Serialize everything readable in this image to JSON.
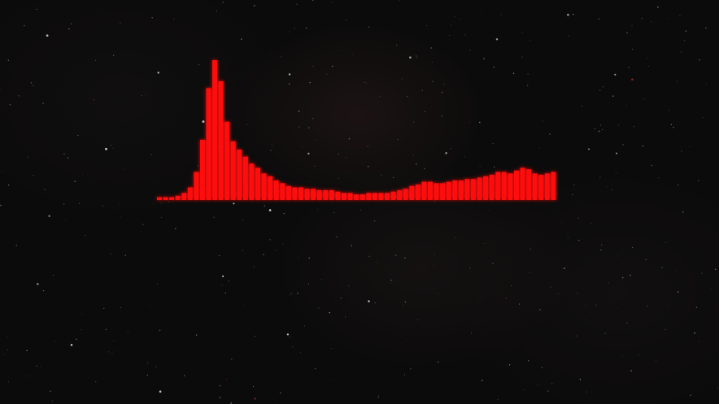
{
  "background": {
    "base_color": "#0c0b0b",
    "star_color": "#d8d8d8",
    "accent_star_color": "#c83030"
  },
  "visualizer": {
    "bar_color": "#ff0a0a",
    "glow_color": "#ff2020",
    "levels": [
      0.02,
      0.02,
      0.02,
      0.03,
      0.05,
      0.09,
      0.2,
      0.43,
      0.8,
      1.0,
      0.85,
      0.56,
      0.42,
      0.36,
      0.31,
      0.26,
      0.23,
      0.19,
      0.17,
      0.14,
      0.12,
      0.1,
      0.09,
      0.09,
      0.08,
      0.08,
      0.07,
      0.07,
      0.07,
      0.06,
      0.05,
      0.05,
      0.04,
      0.04,
      0.05,
      0.05,
      0.05,
      0.05,
      0.06,
      0.07,
      0.08,
      0.1,
      0.11,
      0.13,
      0.13,
      0.12,
      0.12,
      0.13,
      0.14,
      0.14,
      0.15,
      0.15,
      0.16,
      0.17,
      0.18,
      0.2,
      0.2,
      0.19,
      0.21,
      0.23,
      0.22,
      0.19,
      0.18,
      0.19,
      0.2
    ]
  }
}
